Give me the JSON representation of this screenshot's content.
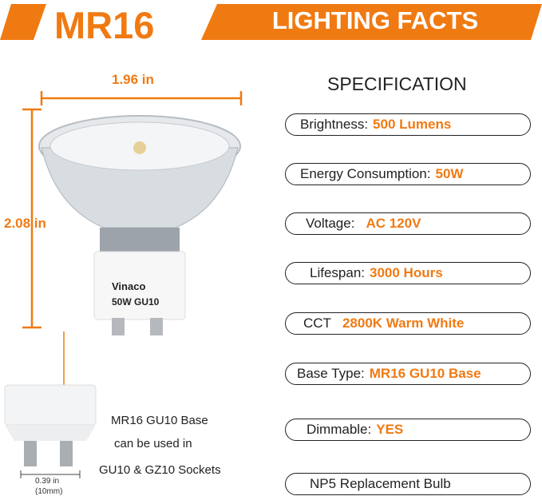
{
  "header": {
    "model": "MR16",
    "banner": "LIGHTING FACTS"
  },
  "dimensions": {
    "width": "1.96 in",
    "height": "2.08 in",
    "pin_spacing": "0.39 in",
    "pin_spacing_mm": "(10mm)"
  },
  "bulb_label": {
    "brand": "Vinaco",
    "model": "50W GU10"
  },
  "base_note": [
    "MR16 GU10 Base",
    "can be used in",
    "GU10 & GZ10 Sockets"
  ],
  "spec": {
    "title": "SPECIFICATION",
    "items": [
      {
        "label": "Brightness:",
        "value": "500 Lumens"
      },
      {
        "label": "Energy Consumption:",
        "value": "50W"
      },
      {
        "label": "Voltage:",
        "value": "AC 120V"
      },
      {
        "label": "Lifespan:",
        "value": "3000 Hours"
      },
      {
        "label": "CCT",
        "value": "2800K Warm White"
      },
      {
        "label": "Base Type:",
        "value": "MR16 GU10 Base"
      },
      {
        "label": "Dimmable:",
        "value": "YES"
      },
      {
        "label": "NP5 Replacement Bulb",
        "value": ""
      }
    ]
  },
  "colors": {
    "accent": "#f07a12",
    "text": "#222222"
  }
}
